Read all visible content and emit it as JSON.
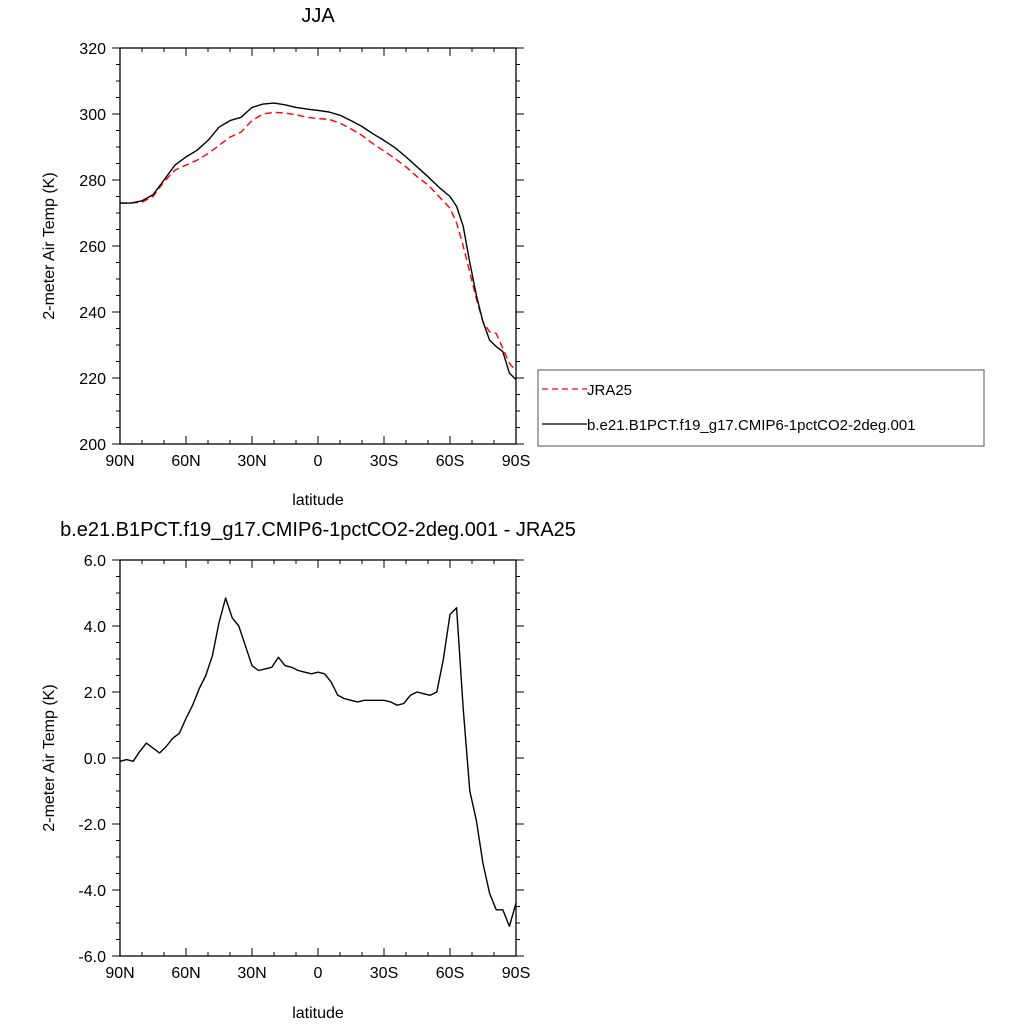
{
  "chart_data": [
    {
      "type": "line",
      "title": "JJA",
      "xlabel": "latitude",
      "ylabel": "2-meter Air Temp (K)",
      "xlim": [
        90,
        -90
      ],
      "ylim": [
        200,
        320
      ],
      "x_ticks": [
        90,
        60,
        30,
        0,
        -30,
        -60,
        -90
      ],
      "x_tick_labels": [
        "90N",
        "60N",
        "30N",
        "0",
        "30S",
        "60S",
        "90S"
      ],
      "y_ticks": [
        200,
        220,
        240,
        260,
        280,
        300,
        320
      ],
      "y_tick_labels": [
        "200",
        "220",
        "240",
        "260",
        "280",
        "300",
        "320"
      ],
      "grid": false,
      "legend_position": "outside-right",
      "x": [
        90,
        85,
        80,
        75,
        70,
        65,
        60,
        55,
        50,
        45,
        40,
        35,
        30,
        25,
        20,
        15,
        10,
        5,
        0,
        -5,
        -10,
        -15,
        -20,
        -25,
        -30,
        -35,
        -40,
        -45,
        -50,
        -55,
        -60,
        -63,
        -66,
        -69,
        -72,
        -75,
        -78,
        -81,
        -84,
        -87,
        -90
      ],
      "series": [
        {
          "name": "JRA25",
          "color": "#ff0000",
          "dash": "dashed",
          "values": [
            273,
            273,
            273.3,
            275,
            279.5,
            283,
            284.5,
            286,
            288,
            290.5,
            293,
            294.5,
            298,
            300,
            300.5,
            300.3,
            299.8,
            299,
            298.6,
            298.4,
            297.2,
            295.5,
            293.5,
            291,
            288.8,
            286.5,
            284,
            281,
            278.5,
            275,
            271.5,
            267,
            260,
            252,
            244,
            237,
            234,
            233.5,
            229,
            224.5,
            222
          ]
        },
        {
          "name": "b.e21.B1PCT.f19_g17.CMIP6-1pctCO2-2deg.001",
          "color": "#000000",
          "dash": "solid",
          "values": [
            273,
            273,
            273.7,
            275.5,
            280,
            284.5,
            287,
            289,
            292,
            296,
            298,
            299,
            302,
            303,
            303.3,
            302.8,
            302,
            301.5,
            301.1,
            300.6,
            299.6,
            298,
            296.2,
            294,
            292,
            289.8,
            287,
            284,
            281,
            277.8,
            275,
            272,
            266,
            255,
            245,
            237,
            231.5,
            229.5,
            228,
            221.5,
            219.5
          ]
        }
      ]
    },
    {
      "type": "line",
      "title": "b.e21.B1PCT.f19_g17.CMIP6-1pctCO2-2deg.001 - JRA25",
      "xlabel": "latitude",
      "ylabel": "2-meter Air Temp (K)",
      "xlim": [
        90,
        -90
      ],
      "ylim": [
        -6,
        6
      ],
      "x_ticks": [
        90,
        60,
        30,
        0,
        -30,
        -60,
        -90
      ],
      "x_tick_labels": [
        "90N",
        "60N",
        "30N",
        "0",
        "30S",
        "60S",
        "90S"
      ],
      "y_ticks": [
        -6,
        -4,
        -2,
        0,
        2,
        4,
        6
      ],
      "y_tick_labels": [
        "-6.0",
        "-4.0",
        "-2.0",
        "0.0",
        "2.0",
        "4.0",
        "6.0"
      ],
      "grid": false,
      "x": [
        90,
        87,
        84,
        81,
        78,
        75,
        72,
        69,
        66,
        63,
        60,
        57,
        54,
        51,
        48,
        45,
        42,
        39,
        36,
        33,
        30,
        27,
        24,
        21,
        18,
        15,
        12,
        9,
        6,
        3,
        0,
        -3,
        -6,
        -9,
        -12,
        -15,
        -18,
        -21,
        -24,
        -27,
        -30,
        -33,
        -36,
        -39,
        -42,
        -45,
        -48,
        -51,
        -54,
        -57,
        -60,
        -63,
        -66,
        -69,
        -72,
        -75,
        -78,
        -81,
        -84,
        -87,
        -90
      ],
      "series": [
        {
          "color": "#000000",
          "dash": "solid",
          "values": [
            -0.1,
            -0.05,
            -0.1,
            0.2,
            0.45,
            0.3,
            0.15,
            0.35,
            0.6,
            0.75,
            1.2,
            1.6,
            2.1,
            2.5,
            3.1,
            4.1,
            4.85,
            4.25,
            4.0,
            3.4,
            2.8,
            2.65,
            2.7,
            2.75,
            3.05,
            2.8,
            2.75,
            2.65,
            2.6,
            2.55,
            2.6,
            2.55,
            2.3,
            1.9,
            1.8,
            1.75,
            1.7,
            1.75,
            1.75,
            1.75,
            1.75,
            1.7,
            1.6,
            1.65,
            1.9,
            2.0,
            1.95,
            1.9,
            2.0,
            3.0,
            4.35,
            4.55,
            1.5,
            -1.0,
            -1.9,
            -3.2,
            -4.1,
            -4.6,
            -4.6,
            -5.1,
            -4.4
          ]
        }
      ]
    }
  ]
}
